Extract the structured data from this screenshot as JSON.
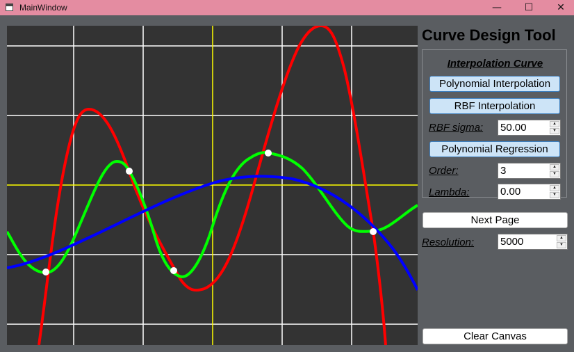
{
  "window": {
    "title": "MainWindow",
    "minimize": "—",
    "maximize": "☐",
    "close": "✕"
  },
  "panel": {
    "title": "Curve Design Tool",
    "group_title": "Interpolation Curve",
    "poly_interp_label": "Polynomial Interpolation",
    "rbf_interp_label": "RBF Interpolation",
    "rbf_sigma_label": "RBF sigma:",
    "rbf_sigma_value": "50.00",
    "poly_regression_label": "Polynomial Regression",
    "order_label": "Order:",
    "order_value": "3",
    "lambda_label": "Lambda:",
    "lambda_value": "0.00",
    "next_page_label": "Next Page",
    "resolution_label": "Resolution:",
    "resolution_value": "5000",
    "clear_canvas_label": "Clear Canvas"
  },
  "canvas": {
    "background": "#333333",
    "grid_color": "#ffffff",
    "axis_color": "#ffff00",
    "curve_colors": {
      "polynomial_interpolation": "#ff0000",
      "rbf_interpolation": "#00ff00",
      "polynomial_regression": "#0000ff"
    },
    "control_point_color": "#ffffff"
  }
}
